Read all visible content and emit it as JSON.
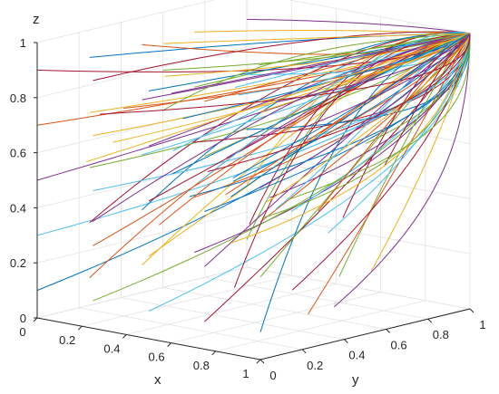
{
  "chart_data": {
    "type": "line",
    "projection": "3d",
    "xlabel": "x",
    "ylabel": "y",
    "zlabel": "z",
    "xlim": [
      0,
      1
    ],
    "ylim": [
      0,
      1
    ],
    "zlim": [
      0,
      1
    ],
    "grid": true,
    "x_ticks": [
      "0",
      "0.2",
      "0.4",
      "0.6",
      "0.8",
      "1"
    ],
    "y_ticks": [
      "0",
      "0.2",
      "0.4",
      "0.6",
      "0.8",
      "1"
    ],
    "z_ticks": [
      "0",
      "0.2",
      "0.4",
      "0.6",
      "0.8",
      "1"
    ],
    "colors": [
      "#0072BD",
      "#D95319",
      "#EDB120",
      "#7E2F8E",
      "#77AC30",
      "#4DBEEE",
      "#A2142F"
    ],
    "series_description_values": {
      "start_points_x": [
        0,
        0.25,
        0.5,
        0.75,
        1
      ],
      "start_points_y": [
        0,
        0.25,
        0.5,
        0.75,
        1
      ],
      "start_points_z": [
        0.1,
        0.3,
        0.5,
        0.7,
        0.9
      ],
      "attractor": [
        1,
        1,
        1
      ]
    }
  }
}
